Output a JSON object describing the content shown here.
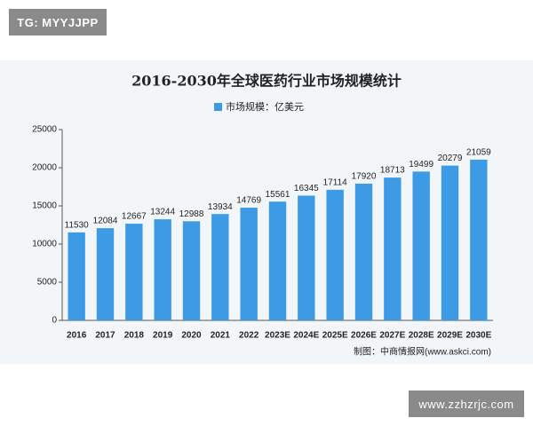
{
  "header_label": "TG: MYYJJPP",
  "footer_label": "www.zzhzrjc.com",
  "chart_data": {
    "type": "bar",
    "title": "2016-2030年全球医药行业市场规模统计",
    "categories": [
      "2016",
      "2017",
      "2018",
      "2019",
      "2020",
      "2021",
      "2022",
      "2023E",
      "2024E",
      "2025E",
      "2026E",
      "2027E",
      "2028E",
      "2029E",
      "2030E"
    ],
    "series": [
      {
        "name": "市场规模：亿美元",
        "color": "#3d9be6",
        "values": [
          11530,
          12084,
          12667,
          13244,
          12988,
          13934,
          14769,
          15561,
          16345,
          17114,
          17920,
          18713,
          19499,
          20279,
          21059
        ]
      }
    ],
    "ylim": [
      0,
      25000
    ],
    "yticks": [
      0,
      5000,
      10000,
      15000,
      20000,
      25000
    ],
    "grid": false,
    "source": "制图：中商情报网(www.askci.com)"
  }
}
